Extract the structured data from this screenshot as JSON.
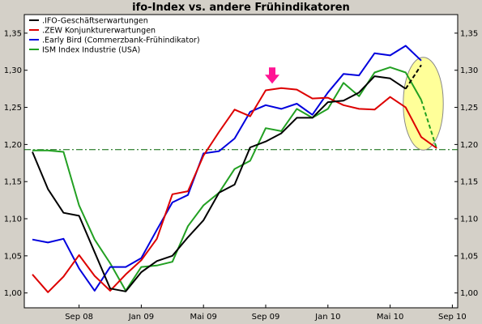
{
  "chart_data": {
    "type": "line",
    "title": "ifo-Index vs. andere Frühindikatoren",
    "ylim": [
      0.98,
      1.375
    ],
    "y_ticks": [
      "1,00",
      "1,05",
      "1,10",
      "1,15",
      "1,20",
      "1,25",
      "1,30",
      "1,35"
    ],
    "x_ticks": [
      "Sep 08",
      "Jan 09",
      "Mai 09",
      "Sep 09",
      "Jan 10",
      "Mai 10",
      "Sep 10"
    ],
    "legend_position": "top-left",
    "reference_line": {
      "value": 1.193,
      "color": "#006400",
      "style": "dash-dot"
    },
    "highlight_arrow": {
      "label_near": "Sep 09",
      "color": "#ff1493"
    },
    "highlight_ellipse": {
      "x_range": [
        "Jun 10",
        "Aug 10"
      ],
      "color": "#ffff99"
    },
    "series": [
      {
        "name": ".IFO-Geschäftserwartungen",
        "color": "#000000",
        "points": [
          [
            "2008-06",
            1.19
          ],
          [
            "2008-07",
            1.14
          ],
          [
            "2008-08",
            1.108
          ],
          [
            "2008-09",
            1.104
          ],
          [
            "2008-10",
            1.055
          ],
          [
            "2008-11",
            1.006
          ],
          [
            "2008-12",
            1.002
          ],
          [
            "2009-01",
            1.028
          ],
          [
            "2009-02",
            1.043
          ],
          [
            "2009-03",
            1.05
          ],
          [
            "2009-04",
            1.075
          ],
          [
            "2009-05",
            1.098
          ],
          [
            "2009-06",
            1.135
          ],
          [
            "2009-07",
            1.146
          ],
          [
            "2009-08",
            1.196
          ],
          [
            "2009-09",
            1.204
          ],
          [
            "2009-10",
            1.215
          ],
          [
            "2009-11",
            1.236
          ],
          [
            "2009-12",
            1.236
          ],
          [
            "2010-01",
            1.257
          ],
          [
            "2010-02",
            1.259
          ],
          [
            "2010-03",
            1.27
          ],
          [
            "2010-04",
            1.292
          ],
          [
            "2010-05",
            1.289
          ],
          [
            "2010-06",
            1.275
          ],
          [
            "2010-07",
            1.307
          ]
        ]
      },
      {
        "name": ".ZEW Konjunkturerwartungen",
        "color": "#dd0000",
        "points": [
          [
            "2008-06",
            1.025
          ],
          [
            "2008-07",
            1.001
          ],
          [
            "2008-08",
            1.022
          ],
          [
            "2008-09",
            1.051
          ],
          [
            "2008-10",
            1.023
          ],
          [
            "2008-11",
            1.003
          ],
          [
            "2008-12",
            1.025
          ],
          [
            "2009-01",
            1.044
          ],
          [
            "2009-02",
            1.073
          ],
          [
            "2009-03",
            1.133
          ],
          [
            "2009-04",
            1.137
          ],
          [
            "2009-05",
            1.185
          ],
          [
            "2009-06",
            1.217
          ],
          [
            "2009-07",
            1.247
          ],
          [
            "2009-08",
            1.238
          ],
          [
            "2009-09",
            1.273
          ],
          [
            "2009-10",
            1.276
          ],
          [
            "2009-11",
            1.274
          ],
          [
            "2009-12",
            1.262
          ],
          [
            "2010-01",
            1.263
          ],
          [
            "2010-02",
            1.253
          ],
          [
            "2010-03",
            1.248
          ],
          [
            "2010-04",
            1.247
          ],
          [
            "2010-05",
            1.264
          ],
          [
            "2010-06",
            1.25
          ],
          [
            "2010-07",
            1.21
          ],
          [
            "2010-08",
            1.195
          ]
        ]
      },
      {
        "name": ".Early Bird (Commerzbank-Frühindikator)",
        "color": "#0000dd",
        "points": [
          [
            "2008-06",
            1.072
          ],
          [
            "2008-07",
            1.068
          ],
          [
            "2008-08",
            1.073
          ],
          [
            "2008-09",
            1.033
          ],
          [
            "2008-10",
            1.003
          ],
          [
            "2008-11",
            1.035
          ],
          [
            "2008-12",
            1.035
          ],
          [
            "2009-01",
            1.047
          ],
          [
            "2009-02",
            1.085
          ],
          [
            "2009-03",
            1.122
          ],
          [
            "2009-04",
            1.132
          ],
          [
            "2009-05",
            1.188
          ],
          [
            "2009-06",
            1.191
          ],
          [
            "2009-07",
            1.208
          ],
          [
            "2009-08",
            1.244
          ],
          [
            "2009-09",
            1.253
          ],
          [
            "2009-10",
            1.248
          ],
          [
            "2009-11",
            1.255
          ],
          [
            "2009-12",
            1.24
          ],
          [
            "2010-01",
            1.27
          ],
          [
            "2010-02",
            1.295
          ],
          [
            "2010-03",
            1.293
          ],
          [
            "2010-04",
            1.323
          ],
          [
            "2010-05",
            1.32
          ],
          [
            "2010-06",
            1.333
          ],
          [
            "2010-07",
            1.313
          ]
        ]
      },
      {
        "name": "ISM Index Industrie (USA)",
        "color": "#22a022",
        "points": [
          [
            "2008-06",
            1.192
          ],
          [
            "2008-07",
            1.192
          ],
          [
            "2008-08",
            1.19
          ],
          [
            "2008-09",
            1.118
          ],
          [
            "2008-10",
            1.072
          ],
          [
            "2008-11",
            1.04
          ],
          [
            "2008-12",
            1.003
          ],
          [
            "2009-01",
            1.035
          ],
          [
            "2009-02",
            1.037
          ],
          [
            "2009-03",
            1.042
          ],
          [
            "2009-04",
            1.09
          ],
          [
            "2009-05",
            1.118
          ],
          [
            "2009-06",
            1.135
          ],
          [
            "2009-07",
            1.167
          ],
          [
            "2009-08",
            1.178
          ],
          [
            "2009-09",
            1.222
          ],
          [
            "2009-10",
            1.218
          ],
          [
            "2009-11",
            1.248
          ],
          [
            "2009-12",
            1.236
          ],
          [
            "2010-01",
            1.248
          ],
          [
            "2010-02",
            1.283
          ],
          [
            "2010-03",
            1.265
          ],
          [
            "2010-04",
            1.297
          ],
          [
            "2010-05",
            1.304
          ],
          [
            "2010-06",
            1.297
          ],
          [
            "2010-07",
            1.26
          ],
          [
            "2010-08",
            1.194
          ]
        ]
      }
    ]
  }
}
